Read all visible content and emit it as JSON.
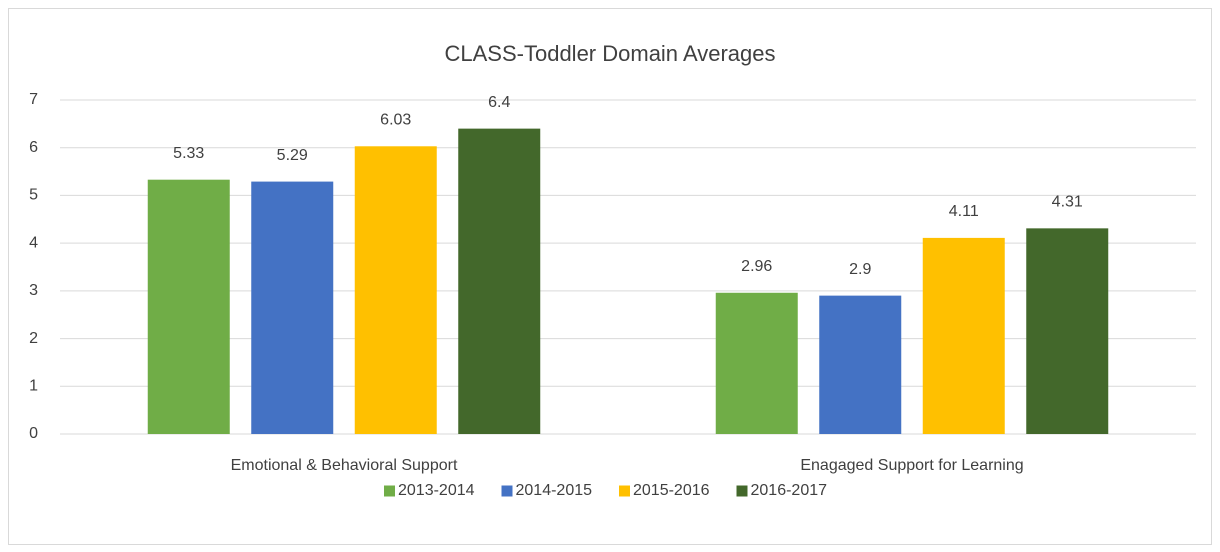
{
  "chart_data": {
    "type": "bar",
    "title": "CLASS-Toddler Domain Averages",
    "categories": [
      "Emotional & Behavioral Support",
      "Enagaged Support for Learning"
    ],
    "series": [
      {
        "name": "2013-2014",
        "color": "#70ad47",
        "values": [
          5.33,
          2.96
        ]
      },
      {
        "name": "2014-2015",
        "color": "#4472c4",
        "values": [
          5.29,
          2.9
        ]
      },
      {
        "name": "2015-2016",
        "color": "#ffc000",
        "values": [
          6.03,
          4.11
        ]
      },
      {
        "name": "2016-2017",
        "color": "#43682b",
        "values": [
          6.4,
          4.31
        ]
      }
    ],
    "ylim": [
      0,
      7
    ],
    "yticks": [
      0,
      1,
      2,
      3,
      4,
      5,
      6,
      7
    ],
    "grid": true,
    "legend": "bottom"
  }
}
